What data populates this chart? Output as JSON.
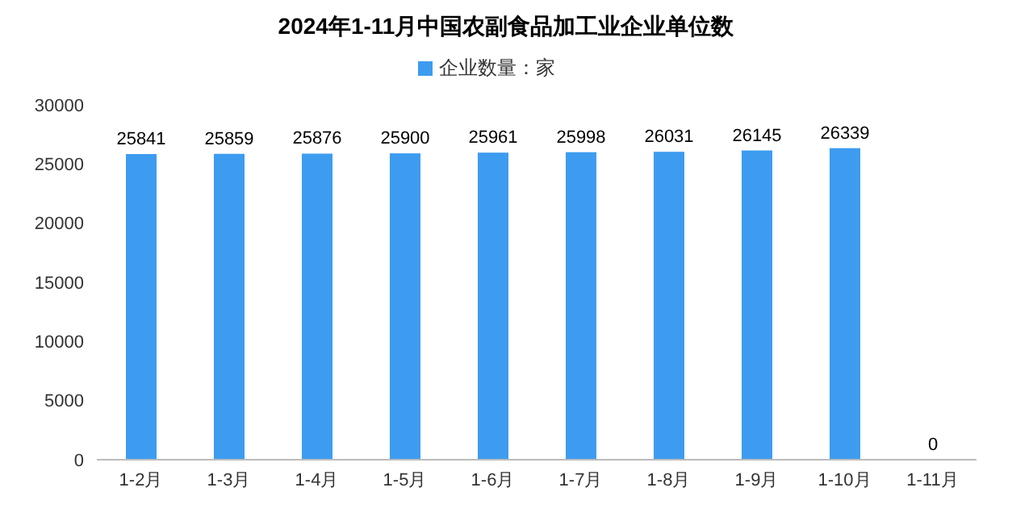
{
  "chart_data": {
    "type": "bar",
    "title": "2024年1-11月中国农副食品加工业企业单位数",
    "categories": [
      "1-2月",
      "1-3月",
      "1-4月",
      "1-5月",
      "1-6月",
      "1-7月",
      "1-8月",
      "1-9月",
      "1-10月",
      "1-11月"
    ],
    "series": [
      {
        "name": "企业数量：家",
        "color": "#3d9cf0",
        "values": [
          25841,
          25859,
          25876,
          25900,
          25961,
          25998,
          26031,
          26145,
          26339,
          0
        ]
      }
    ],
    "ylim": [
      0,
      30000
    ],
    "yticks": [
      0,
      5000,
      10000,
      15000,
      20000,
      25000,
      30000
    ],
    "data_labels": true,
    "legend": "top",
    "grid": false
  }
}
